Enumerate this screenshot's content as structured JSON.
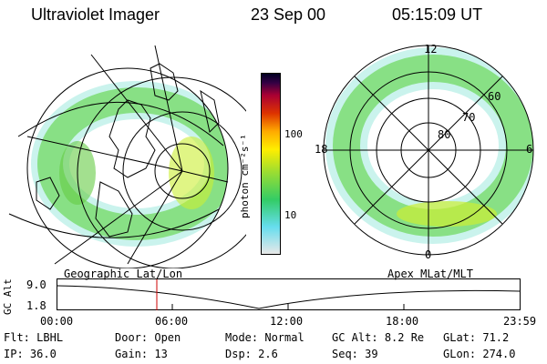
{
  "header": {
    "title": "Ultraviolet Imager",
    "date": "23 Sep 00",
    "time": "05:15:09 UT"
  },
  "left_panel": {
    "label": "Geographic Lat/Lon"
  },
  "right_panel": {
    "label": "Apex MLat/MLT",
    "mlt_labels": [
      "12",
      "18",
      "6",
      "0"
    ],
    "mlat_labels": [
      "60",
      "70",
      "80"
    ]
  },
  "colorbar": {
    "unit": "photon cm⁻²s⁻¹",
    "ticks": [
      "100",
      "10"
    ],
    "colors": [
      "#e8e8e8",
      "#66ddee",
      "#33cc66",
      "#99dd33",
      "#ffee00",
      "#ffaa00",
      "#dd3300",
      "#aa0033",
      "#330044",
      "#000022"
    ]
  },
  "timeline": {
    "ylabel": "GC Alt",
    "y_ticks": [
      "9.0",
      "1.8"
    ],
    "x_ticks": [
      "00:00",
      "06:00",
      "12:00",
      "18:00",
      "23:59"
    ],
    "marker_time": "05:15"
  },
  "footer": {
    "row1": [
      {
        "key": "Flt:",
        "value": "LBHL"
      },
      {
        "key": "Door:",
        "value": "Open"
      },
      {
        "key": "Mode:",
        "value": "Normal"
      },
      {
        "key": "GC Alt:",
        "value": "8.2 Re"
      },
      {
        "key": "GLat:",
        "value": "71.2"
      }
    ],
    "row2": [
      {
        "key": "IP:",
        "value": "36.0"
      },
      {
        "key": "Gain:",
        "value": "13"
      },
      {
        "key": "Dsp:",
        "value": "2.6"
      },
      {
        "key": "Seq:",
        "value": "39"
      },
      {
        "key": "GLon:",
        "value": "274.0"
      }
    ]
  }
}
